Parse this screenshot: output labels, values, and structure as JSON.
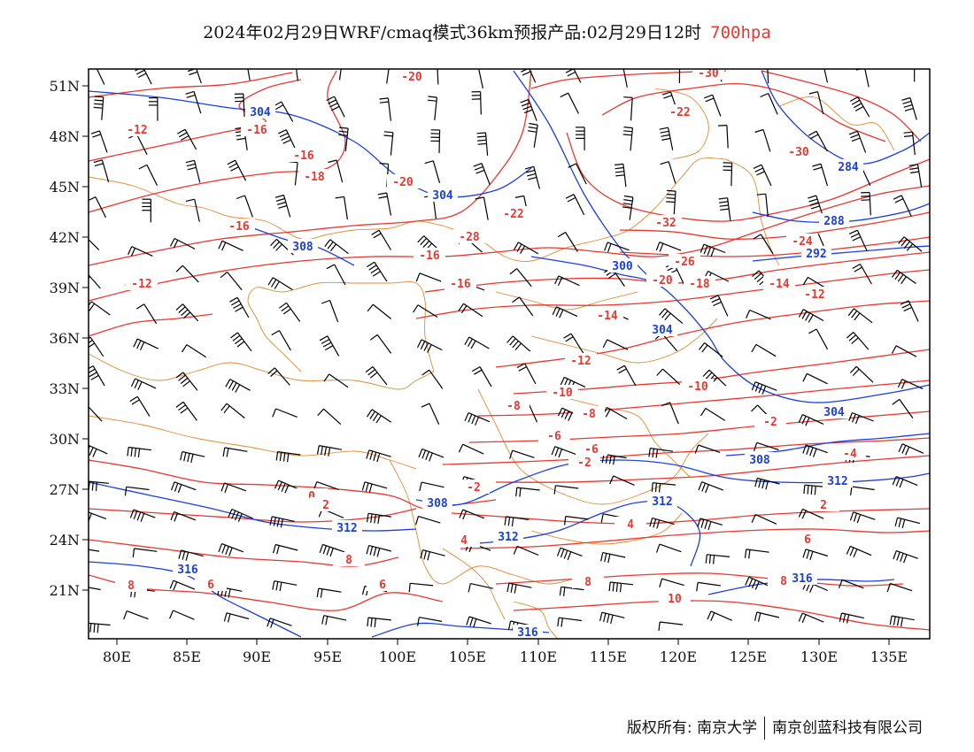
{
  "title": {
    "main": "2024年02月29日WRF/cmaq模式36km预报产品:02月29日12时",
    "level": "700hpa"
  },
  "axes": {
    "lon_labels": [
      "80E",
      "85E",
      "90E",
      "95E",
      "100E",
      "105E",
      "110E",
      "115E",
      "120E",
      "125E",
      "130E",
      "135E"
    ],
    "lat_labels": [
      "51N",
      "48N",
      "45N",
      "42N",
      "39N",
      "36N",
      "33N",
      "30N",
      "27N",
      "24N",
      "21N"
    ]
  },
  "colors": {
    "temperature": "#e8382f",
    "geopotential": "#1a3fe0",
    "border": "#e08a30",
    "wind": "#000000"
  },
  "temperature_labels": [
    "-20",
    "-30",
    "-22",
    "-30",
    "-12",
    "-16",
    "-16",
    "-18",
    "-20",
    "-22",
    "-24",
    "-32",
    "-26",
    "-28",
    "-20",
    "-16",
    "-18",
    "-16",
    "-14",
    "-12",
    "-16",
    "-14",
    "-12",
    "-12",
    "-10",
    "-10",
    "-8",
    "-8",
    "-6",
    "-6",
    "-4",
    "-2",
    "-2",
    "0",
    "-2",
    "2",
    "2",
    "4",
    "4",
    "6",
    "6",
    "6",
    "8",
    "8",
    "8",
    "8",
    "10"
  ],
  "height_labels": [
    "304",
    "304",
    "308",
    "300",
    "304",
    "284",
    "288",
    "292",
    "304",
    "308",
    "308",
    "312",
    "312",
    "312",
    "312",
    "316",
    "316",
    "316"
  ],
  "footer": {
    "owner": "版权所有: 南京大学",
    "partner": "南京创蓝科技有限公司"
  }
}
